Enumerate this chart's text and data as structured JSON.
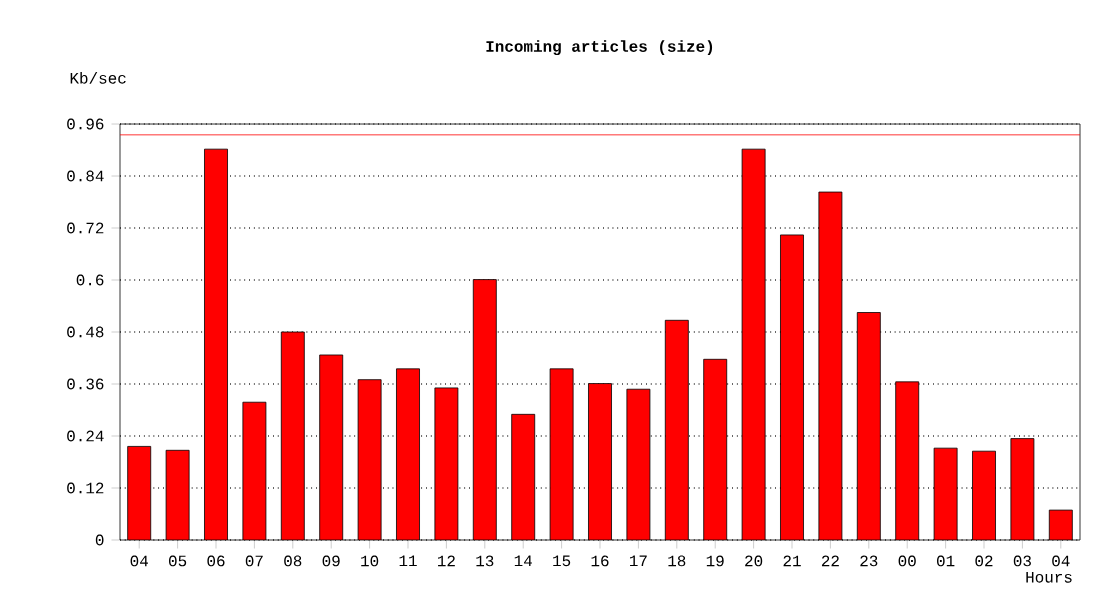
{
  "chart_data": {
    "type": "bar",
    "title": "Incoming articles (size)",
    "ylabel": "Kb/sec",
    "xlabel": "Hours",
    "categories": [
      "04",
      "05",
      "06",
      "07",
      "08",
      "09",
      "10",
      "11",
      "12",
      "13",
      "14",
      "15",
      "16",
      "17",
      "18",
      "19",
      "20",
      "21",
      "22",
      "23",
      "00",
      "01",
      "02",
      "03",
      "04"
    ],
    "values": [
      0.216,
      0.207,
      0.902,
      0.318,
      0.48,
      0.427,
      0.37,
      0.395,
      0.351,
      0.601,
      0.29,
      0.395,
      0.361,
      0.348,
      0.507,
      0.417,
      0.902,
      0.704,
      0.803,
      0.525,
      0.365,
      0.212,
      0.205,
      0.234,
      0.069
    ],
    "color": "#ff0000",
    "ylim": [
      0,
      0.96
    ],
    "yticks": [
      0,
      0.12,
      0.24,
      0.36,
      0.48,
      0.6,
      0.72,
      0.84,
      0.96
    ],
    "grid": "y",
    "ref_lines": [
      {
        "axis": "y",
        "value": 0.935,
        "color": "#ff0000"
      }
    ]
  }
}
